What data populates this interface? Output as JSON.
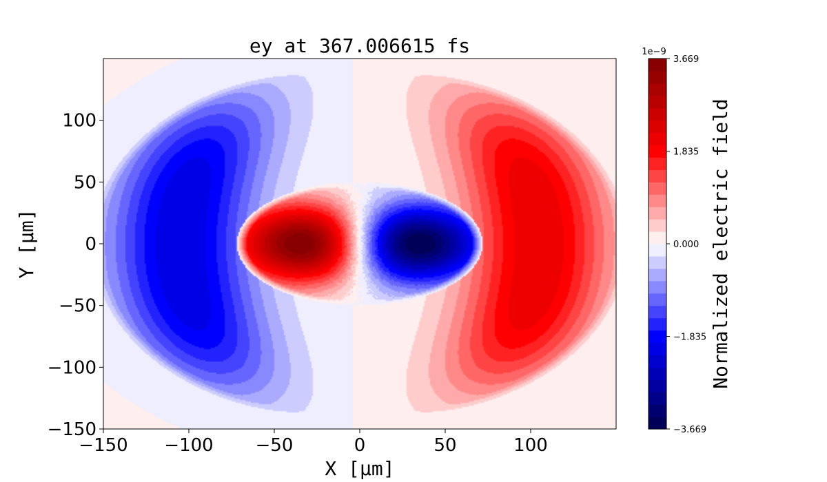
{
  "chart_data": {
    "type": "heatmap",
    "title": "ey at 367.006615 fs",
    "xlabel": "X [μm]",
    "ylabel": "Y [μm]",
    "xlim": [
      -150,
      150
    ],
    "ylim": [
      -150,
      150
    ],
    "xticks": [
      -150,
      -100,
      -50,
      0,
      50,
      100
    ],
    "xtick_labels": [
      "−150",
      "−100",
      "−50",
      "0",
      "50",
      "100"
    ],
    "yticks": [
      -150,
      -100,
      -50,
      0,
      50,
      100
    ],
    "ytick_labels": [
      "−150",
      "−100",
      "−50",
      "0",
      "50",
      "100"
    ],
    "colormap": "seismic",
    "levels": 30,
    "colorbar": {
      "label": "Normalized electric field",
      "exponent_label": "1e−9",
      "range": [
        -3.669,
        3.669
      ],
      "ticks": [
        -3.669,
        -1.835,
        0.0,
        1.835,
        3.669
      ],
      "tick_labels": [
        "−3.669",
        "−1.835",
        "0.000",
        "1.835",
        "3.669"
      ]
    },
    "features": {
      "inner_region": {
        "center": [
          0,
          0
        ],
        "semi_axis_x": 72,
        "semi_axis_y": 50
      },
      "inner_extrema": [
        {
          "x": -35,
          "y": 0,
          "value": 3.669
        },
        {
          "x": 35,
          "y": 0,
          "value": -3.669
        }
      ],
      "outer_extrema": [
        {
          "x": -105,
          "y": 0,
          "value": -2.2
        },
        {
          "x": 105,
          "y": 0,
          "value": 2.2
        }
      ]
    },
    "colors": {
      "max": "#800000",
      "mid": "#ffffff",
      "min": "#00004c"
    }
  }
}
